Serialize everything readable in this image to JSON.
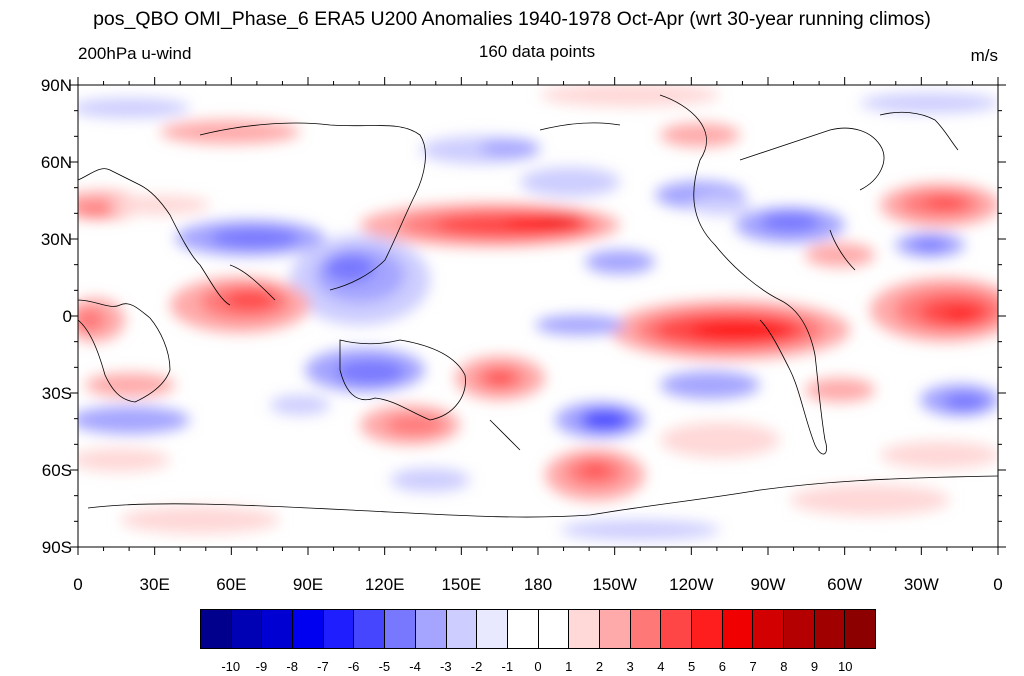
{
  "title": "pos_QBO OMI_Phase_6 ERA5 U200 Anomalies 1940-1978 Oct-Apr (wrt 30-year running climos)",
  "left_subtitle": "200hPa u-wind",
  "center_subtitle": "160 data points",
  "right_subtitle": "m/s",
  "lat_labels": [
    "90N",
    "60N",
    "30N",
    "0",
    "30S",
    "60S",
    "90S"
  ],
  "lon_labels": [
    "0",
    "30E",
    "60E",
    "90E",
    "120E",
    "150E",
    "180",
    "150W",
    "120W",
    "90W",
    "60W",
    "30W",
    "0"
  ],
  "colorbar": {
    "labels": [
      "-10",
      "-9",
      "-8",
      "-7",
      "-6",
      "-5",
      "-4",
      "-3",
      "-2",
      "-1",
      "0",
      "1",
      "2",
      "3",
      "4",
      "5",
      "6",
      "7",
      "8",
      "9",
      "10"
    ],
    "colors": [
      "#00008c",
      "#0000b4",
      "#0000d2",
      "#0000f0",
      "#1e1eff",
      "#4646ff",
      "#7878ff",
      "#a5a5ff",
      "#cdcdff",
      "#e8e8ff",
      "#ffffff",
      "#ffffff",
      "#ffd8d8",
      "#ffaaaa",
      "#ff7878",
      "#ff4646",
      "#ff1e1e",
      "#f00000",
      "#d20000",
      "#b40000",
      "#a00000",
      "#8c0000"
    ]
  }
}
